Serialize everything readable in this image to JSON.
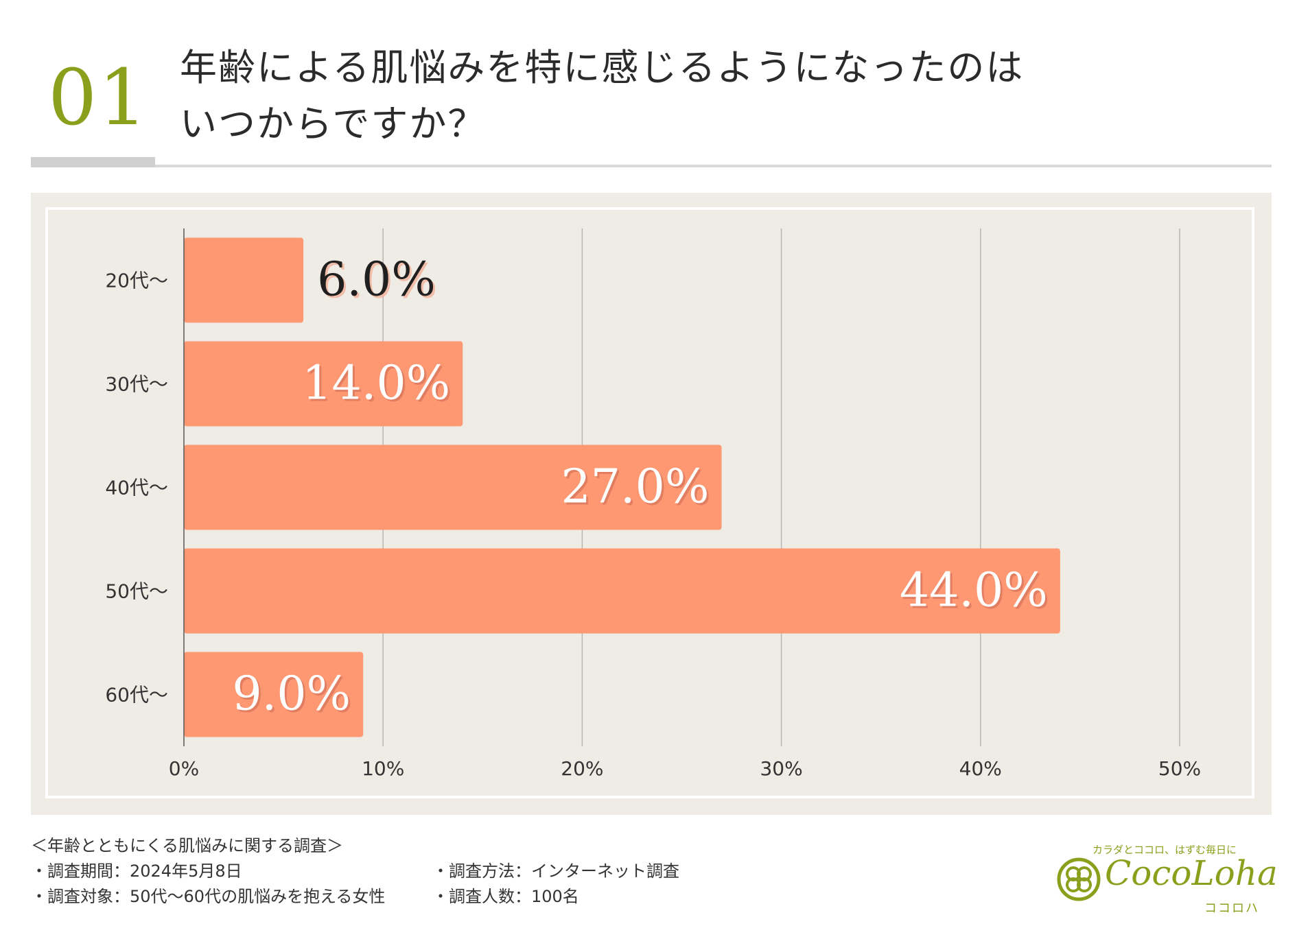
{
  "header": {
    "number": "01",
    "title_line1": "年齢による肌悩みを特に感じるようになったのは",
    "title_line2": "いつからですか？"
  },
  "colors": {
    "accent_green": "#8aa01c",
    "bar": "#fd9873",
    "panel": "#efebe5",
    "grid": "#b9b6b2"
  },
  "chart_data": {
    "type": "bar",
    "orientation": "horizontal",
    "categories": [
      "20代～",
      "30代～",
      "40代～",
      "50代～",
      "60代～"
    ],
    "values": [
      6.0,
      14.0,
      27.0,
      44.0,
      9.0
    ],
    "value_labels": [
      "6.0%",
      "14.0%",
      "27.0%",
      "44.0%",
      "9.0%"
    ],
    "xlim": [
      0,
      50
    ],
    "xticks": [
      0,
      10,
      20,
      30,
      40,
      50
    ],
    "xtick_labels": [
      "0%",
      "10%",
      "20%",
      "30%",
      "40%",
      "50%"
    ],
    "grid": true,
    "title": "",
    "xlabel": "",
    "ylabel": ""
  },
  "footer": {
    "survey_title": "＜年齢とともにくる肌悩みに関する調査＞",
    "period": "・調査期間：2024年5月8日",
    "method": "・調査方法：インターネット調査",
    "target": "・調査対象：50代～60代の肌悩みを抱える女性",
    "count": "・調査人数：100名"
  },
  "logo": {
    "tagline": "カラダとココロ、はずむ毎日に",
    "name": "CocoLoha",
    "kana": "ココロハ"
  }
}
